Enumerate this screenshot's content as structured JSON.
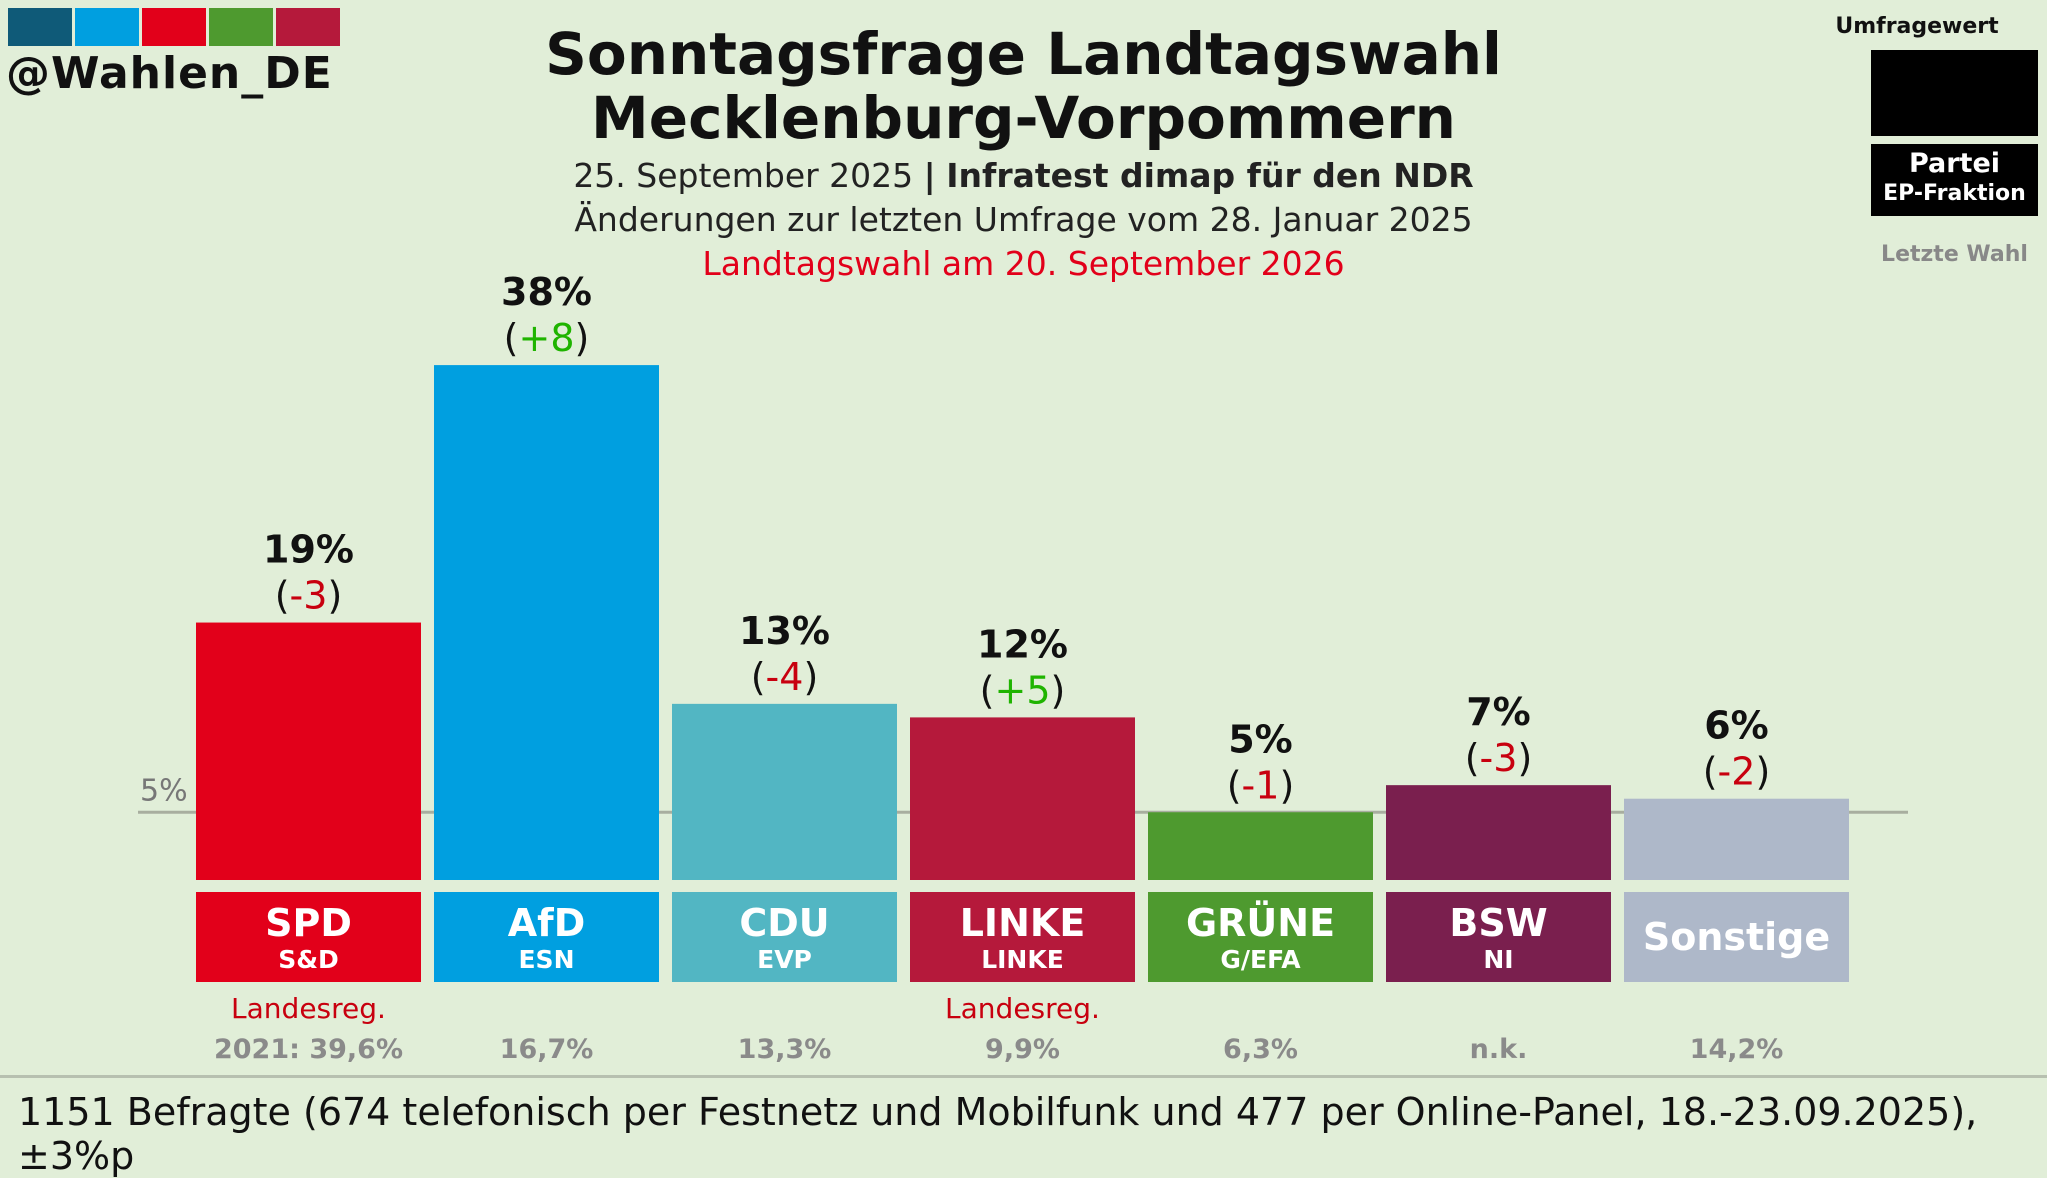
{
  "header": {
    "handle": "@Wahlen_DE",
    "title_line1": "Sonntagsfrage Landtagswahl",
    "title_line2": "Mecklenburg-Vorpommern",
    "date": "25. September 2025",
    "separator": "|",
    "institute": "Infratest dimap für den NDR",
    "changes_note": "Änderungen zur letzten Umfrage vom 28. Januar 2025",
    "election_note": "Landtagswahl am 20. September 2026",
    "logo_colors": [
      "#0f5a78",
      "#009fe0",
      "#e2001a",
      "#4e9a2f",
      "#b5193b"
    ]
  },
  "legend": {
    "title": "Umfragewert",
    "party": "Partei",
    "faction": "EP-Fraktion",
    "last_election": "Letzte Wahl"
  },
  "chart_data": {
    "type": "bar",
    "categories": [
      "SPD",
      "AfD",
      "CDU",
      "LINKE",
      "GRÜNE",
      "BSW",
      "Sonstige"
    ],
    "factions": [
      "S&D",
      "ESN",
      "EVP",
      "LINKE",
      "G/EFA",
      "NI",
      ""
    ],
    "values": [
      19,
      38,
      13,
      12,
      5,
      7,
      6
    ],
    "value_labels": [
      "19%",
      "38%",
      "13%",
      "12%",
      "5%",
      "7%",
      "6%"
    ],
    "changes": [
      "-3",
      "+8",
      "-4",
      "+5",
      "-1",
      "-3",
      "-2"
    ],
    "last_election": [
      "2021: 39,6%",
      "16,7%",
      "13,3%",
      "9,9%",
      "6,3%",
      "n.k.",
      "14,2%"
    ],
    "notes": [
      "Landesreg.",
      "",
      "",
      "Landesreg.",
      "",
      "",
      ""
    ],
    "colors": [
      "#e2001a",
      "#009fe0",
      "#52b6c3",
      "#b5193b",
      "#4e9a2f",
      "#7a1f4e",
      "#aeb8c9"
    ],
    "threshold": 5,
    "threshold_label": "5%",
    "change_colors": {
      "positive": "#1fb400",
      "negative": "#c8000f"
    }
  },
  "footer": {
    "text": "1151 Befragte (674 telefonisch per Festnetz und Mobilfunk und 477 per Online-Panel, 18.-23.09.2025), ±3%p"
  }
}
